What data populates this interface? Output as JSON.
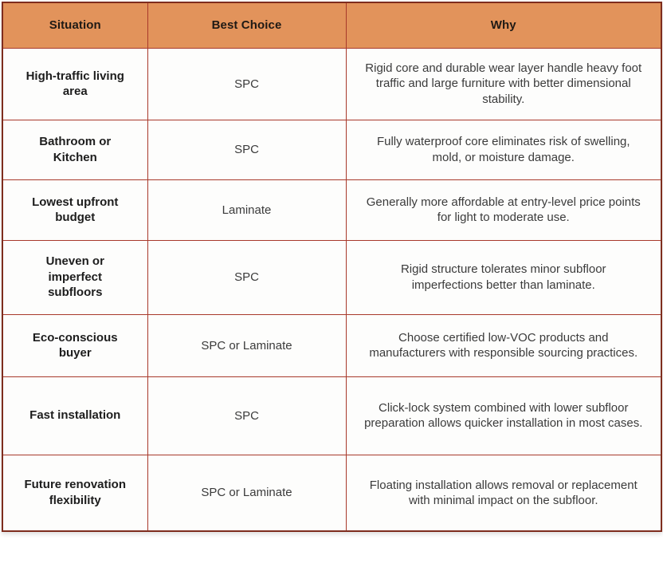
{
  "table": {
    "columns": {
      "situation": "Situation",
      "best_choice": "Best Choice",
      "why": "Why"
    },
    "rows": [
      {
        "situation": "High-traffic living area",
        "best_choice": "SPC",
        "why": "Rigid core and durable wear layer handle heavy foot traffic and large furniture with better dimensional stability."
      },
      {
        "situation": "Bathroom or Kitchen",
        "best_choice": "SPC",
        "why": "Fully waterproof core eliminates risk of swelling, mold, or moisture damage."
      },
      {
        "situation": "Lowest upfront budget",
        "best_choice": "Laminate",
        "why": "Generally more affordable at entry-level price points for light to moderate use."
      },
      {
        "situation": "Uneven or imperfect subfloors",
        "best_choice": "SPC",
        "why": "Rigid structure tolerates minor subfloor imperfections better than laminate."
      },
      {
        "situation": "Eco-conscious buyer",
        "best_choice": "SPC or Laminate",
        "why": "Choose certified low-VOC products and manufacturers with responsible sourcing practices."
      },
      {
        "situation": "Fast installation",
        "best_choice": "SPC",
        "why": "Click-lock system combined with lower subfloor preparation allows quicker installation in most cases."
      },
      {
        "situation": "Future renovation flexibility",
        "best_choice": "SPC or Laminate",
        "why": "Floating installation allows removal or replacement with minimal impact on the subfloor."
      }
    ],
    "colors": {
      "header_bg": "#e2935b",
      "border_inner": "#a8392b",
      "border_outer": "#7e2d1e",
      "header_text": "#1f1a15",
      "situation_text": "#1d1d1d",
      "body_text": "#3b3b3b"
    }
  }
}
